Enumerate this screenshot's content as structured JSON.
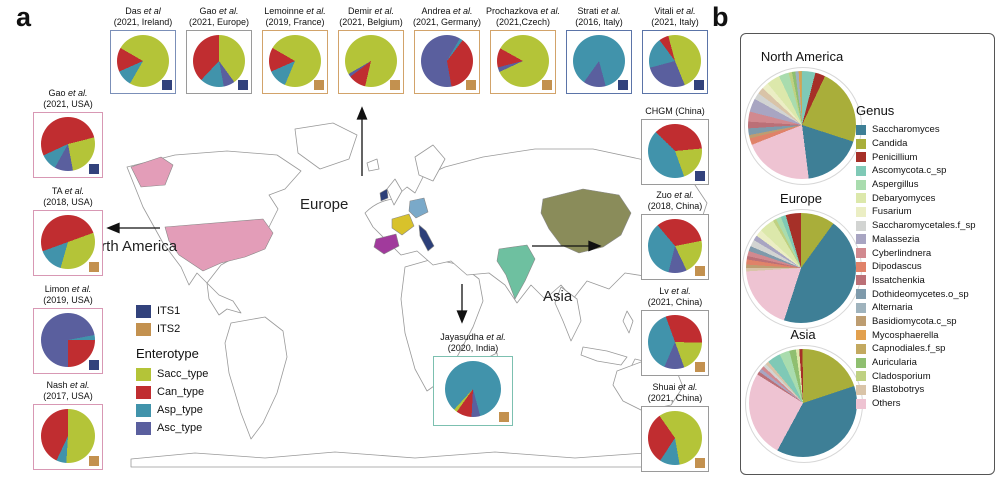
{
  "panel_a": {
    "label": "a",
    "map_labels": {
      "europe": "Europe",
      "north_america": "North America",
      "asia": "Asia"
    },
    "its_legend": [
      {
        "label": "ITS1",
        "color": "#32427c"
      },
      {
        "label": "ITS2",
        "color": "#c3914f"
      }
    ],
    "enterotype_legend": {
      "title": "Enterotype",
      "items": [
        {
          "label": "Sacc_type",
          "color": "#b4c438"
        },
        {
          "label": "Can_type",
          "color": "#c02d30"
        },
        {
          "label": "Asp_type",
          "color": "#4193ab"
        },
        {
          "label": "Asc_type",
          "color": "#5a5f9e"
        }
      ]
    },
    "map_countries": {
      "usa": "#e39db8",
      "alaska": "#e39db8",
      "france": "#d8c22b",
      "germany": "#7aa9c9",
      "spain": "#a13a9c",
      "italy": "#2c3f79",
      "ireland": "#2c3f79",
      "china": "#8a8c5a",
      "india": "#6ec0a0"
    }
  },
  "panel_b": {
    "label": "b",
    "genus_legend": {
      "title": "Genus",
      "items": [
        {
          "label": "Saccharomyces",
          "color": "#3e7f96"
        },
        {
          "label": "Candida",
          "color": "#a9ae3a"
        },
        {
          "label": "Penicillium",
          "color": "#a63028"
        },
        {
          "label": "Ascomycota.c_sp",
          "color": "#7fc9b6"
        },
        {
          "label": "Aspergillus",
          "color": "#a9dcae"
        },
        {
          "label": "Debaryomyces",
          "color": "#dce8ab"
        },
        {
          "label": "Fusarium",
          "color": "#ebeec4"
        },
        {
          "label": "Saccharomycetales.f_sp",
          "color": "#d2d4d2"
        },
        {
          "label": "Malassezia",
          "color": "#a8a5c2"
        },
        {
          "label": "Cyberlindnera",
          "color": "#d1898f"
        },
        {
          "label": "Dipodascus",
          "color": "#e08269"
        },
        {
          "label": "Issatchenkia",
          "color": "#bb7077"
        },
        {
          "label": "Dothideomycetes.o_sp",
          "color": "#7e9aab"
        },
        {
          "label": "Alternaria",
          "color": "#9fb3bd"
        },
        {
          "label": "Basidiomycota.c_sp",
          "color": "#bd9d71"
        },
        {
          "label": "Mycosphaerella",
          "color": "#e2a04e"
        },
        {
          "label": "Capnodiales.f_sp",
          "color": "#c3a960"
        },
        {
          "label": "Auricularia",
          "color": "#8fbf70"
        },
        {
          "label": "Cladosporium",
          "color": "#bfd182"
        },
        {
          "label": "Blastobotrys",
          "color": "#d9c4a8"
        },
        {
          "label": "Others",
          "color": "#eec3d2"
        }
      ]
    }
  },
  "chart_data": [
    {
      "id": "das",
      "type": "pie",
      "title": [
        "Das et al",
        "(2021, Ireland)"
      ],
      "marker": "ITS1",
      "box_color": "#7b8fb8",
      "rotation": 300,
      "slices": [
        {
          "label": "Sacc_type",
          "value": 75
        },
        {
          "label": "Asp_type",
          "value": 10
        },
        {
          "label": "Can_type",
          "value": 15
        }
      ]
    },
    {
      "id": "gao_eu",
      "type": "pie",
      "title": [
        "Gao et al.",
        "(2021, Europe)"
      ],
      "marker": "ITS1",
      "box_color": "#9a9a9a",
      "rotation": 0,
      "slices": [
        {
          "label": "Sacc_type",
          "value": 40
        },
        {
          "label": "Asc_type",
          "value": 7
        },
        {
          "label": "Asp_type",
          "value": 15
        },
        {
          "label": "Can_type",
          "value": 38
        }
      ]
    },
    {
      "id": "lemoinne",
      "type": "pie",
      "title": [
        "Lemoinne et al.",
        "(2019, France)"
      ],
      "marker": "ITS2",
      "box_color": "#d2a36a",
      "rotation": 300,
      "slices": [
        {
          "label": "Sacc_type",
          "value": 73
        },
        {
          "label": "Asp_type",
          "value": 12
        },
        {
          "label": "Can_type",
          "value": 15
        }
      ]
    },
    {
      "id": "demir",
      "type": "pie",
      "title": [
        "Demir et al.",
        "(2021, Belgium)"
      ],
      "marker": "ITS2",
      "box_color": "#d2a36a",
      "rotation": 240,
      "slices": [
        {
          "label": "Sacc_type",
          "value": 87
        },
        {
          "label": "Can_type",
          "value": 11
        },
        {
          "label": "Asc_type",
          "value": 2
        }
      ]
    },
    {
      "id": "andrea",
      "type": "pie",
      "title": [
        "Andrea et al.",
        "(2021, Germany)"
      ],
      "marker": "ITS2",
      "box_color": "#d2a36a",
      "rotation": 170,
      "slices": [
        {
          "label": "Asc_type",
          "value": 61
        },
        {
          "label": "Asp_type",
          "value": 2
        },
        {
          "label": "Can_type",
          "value": 37
        }
      ]
    },
    {
      "id": "prochazkova",
      "type": "pie",
      "title": [
        "Prochazkova et al.",
        "(2021,Czech)"
      ],
      "marker": "ITS2",
      "box_color": "#d2a36a",
      "rotation": 245,
      "slices": [
        {
          "label": "Asc_type",
          "value": 3
        },
        {
          "label": "Can_type",
          "value": 12
        },
        {
          "label": "Sacc_type",
          "value": 85
        }
      ]
    },
    {
      "id": "strati",
      "type": "pie",
      "title": [
        "Strati et al.",
        "(2016, Italy)"
      ],
      "marker": "ITS1",
      "box_color": "#5b74a8",
      "rotation": 165,
      "slices": [
        {
          "label": "Asc_type",
          "value": 14
        },
        {
          "label": "Asp_type",
          "value": 86
        }
      ]
    },
    {
      "id": "vitali",
      "type": "pie",
      "title": [
        "Vitali et al.",
        "(2021, Italy)"
      ],
      "marker": "ITS1",
      "box_color": "#5b74a8",
      "rotation": 345,
      "slices": [
        {
          "label": "Sacc_type",
          "value": 48
        },
        {
          "label": "Asc_type",
          "value": 27
        },
        {
          "label": "Asp_type",
          "value": 19
        },
        {
          "label": "Can_type",
          "value": 6
        }
      ]
    },
    {
      "id": "gao_usa",
      "type": "pie",
      "title": [
        "Gao et al.",
        "(2021, USA)"
      ],
      "marker": "ITS1",
      "box_color": "#d898b4",
      "rotation": 245,
      "slices": [
        {
          "label": "Can_type",
          "value": 53
        },
        {
          "label": "Sacc_type",
          "value": 26
        },
        {
          "label": "Asc_type",
          "value": 11
        },
        {
          "label": "Asp_type",
          "value": 10
        }
      ]
    },
    {
      "id": "ta",
      "type": "pie",
      "title": [
        "TA et al.",
        "(2018, USA)"
      ],
      "marker": "ITS2",
      "box_color": "#d898b4",
      "rotation": 250,
      "slices": [
        {
          "label": "Can_type",
          "value": 50
        },
        {
          "label": "Sacc_type",
          "value": 35
        },
        {
          "label": "Asp_type",
          "value": 15
        }
      ]
    },
    {
      "id": "limon",
      "type": "pie",
      "title": [
        "Limon et al.",
        "(2019, USA)"
      ],
      "marker": "ITS1",
      "box_color": "#d898b4",
      "rotation": 180,
      "slices": [
        {
          "label": "Asc_type",
          "value": 72
        },
        {
          "label": "Asp_type",
          "value": 3
        },
        {
          "label": "Can_type",
          "value": 25
        }
      ]
    },
    {
      "id": "nash",
      "type": "pie",
      "title": [
        "Nash et al.",
        "(2017, USA)"
      ],
      "marker": "ITS2",
      "box_color": "#d898b4",
      "rotation": 0,
      "slices": [
        {
          "label": "Sacc_type",
          "value": 51
        },
        {
          "label": "Asp_type",
          "value": 6
        },
        {
          "label": "Can_type",
          "value": 43
        }
      ]
    },
    {
      "id": "chgm",
      "type": "pie",
      "title": [
        "CHGM (China)"
      ],
      "marker": "ITS1",
      "box_color": "#9a9a9a",
      "rotation": 315,
      "slices": [
        {
          "label": "Can_type",
          "value": 36
        },
        {
          "label": "Sacc_type",
          "value": 21
        },
        {
          "label": "Asp_type",
          "value": 43
        }
      ]
    },
    {
      "id": "zuo",
      "type": "pie",
      "title": [
        "Zuo et al.",
        "(2018, China)"
      ],
      "marker": "ITS2",
      "box_color": "#9a9a9a",
      "rotation": 320,
      "slices": [
        {
          "label": "Can_type",
          "value": 33
        },
        {
          "label": "Sacc_type",
          "value": 21
        },
        {
          "label": "Asc_type",
          "value": 11
        },
        {
          "label": "Asp_type",
          "value": 35
        }
      ]
    },
    {
      "id": "lv",
      "type": "pie",
      "title": [
        "Lv et al.",
        "(2021, China)"
      ],
      "marker": "ITS2",
      "box_color": "#9a9a9a",
      "rotation": 340,
      "slices": [
        {
          "label": "Can_type",
          "value": 31
        },
        {
          "label": "Sacc_type",
          "value": 19
        },
        {
          "label": "Asc_type",
          "value": 12
        },
        {
          "label": "Asp_type",
          "value": 38
        }
      ]
    },
    {
      "id": "shuai",
      "type": "pie",
      "title": [
        "Shuai et al.",
        "(2021, China)"
      ],
      "marker": "ITS2",
      "box_color": "#9a9a9a",
      "rotation": 325,
      "slices": [
        {
          "label": "Sacc_type",
          "value": 57
        },
        {
          "label": "Asp_type",
          "value": 12
        },
        {
          "label": "Can_type",
          "value": 31
        }
      ]
    },
    {
      "id": "jayasudha",
      "type": "pie",
      "title": [
        "Jayasudha et al.",
        "(2020, India)"
      ],
      "marker": "ITS2",
      "box_color": "#7cc0b0",
      "rotation": 165,
      "slices": [
        {
          "label": "Asc_type",
          "value": 5
        },
        {
          "label": "Can_type",
          "value": 9
        },
        {
          "label": "Sacc_type",
          "value": 2
        },
        {
          "label": "Asp_type",
          "value": 84
        }
      ]
    },
    {
      "id": "na_genus",
      "type": "pie",
      "title": "North America",
      "rotation": 0,
      "slices": [
        {
          "label": "Ascomycota.c_sp",
          "value": 4
        },
        {
          "label": "Penicillium",
          "value": 3
        },
        {
          "label": "Candida",
          "value": 23
        },
        {
          "label": "Saccharomyces",
          "value": 18
        },
        {
          "label": "Others",
          "value": 21
        },
        {
          "label": "Dipodascus",
          "value": 2
        },
        {
          "label": "Basidiomycota.c_sp",
          "value": 1
        },
        {
          "label": "Dothideomycetes.o_sp",
          "value": 2
        },
        {
          "label": "Issatchenkia",
          "value": 2
        },
        {
          "label": "Cyberlindnera",
          "value": 3
        },
        {
          "label": "Malassezia",
          "value": 4
        },
        {
          "label": "Saccharomycetales.f_sp",
          "value": 2
        },
        {
          "label": "Blastobotrys",
          "value": 2
        },
        {
          "label": "Fusarium",
          "value": 2
        },
        {
          "label": "Debaryomyces",
          "value": 4
        },
        {
          "label": "Aspergillus",
          "value": 3
        },
        {
          "label": "Cladosporium",
          "value": 1
        },
        {
          "label": "Auricularia",
          "value": 1
        },
        {
          "label": "Alternaria",
          "value": 1
        },
        {
          "label": "Mycosphaerella",
          "value": 0.5
        },
        {
          "label": "Capnodiales.f_sp",
          "value": 0.5
        }
      ]
    },
    {
      "id": "eu_genus",
      "type": "pie",
      "title": "Europe",
      "rotation": 0,
      "slices": [
        {
          "label": "Candida",
          "value": 10
        },
        {
          "label": "Saccharomyces",
          "value": 45
        },
        {
          "label": "Others",
          "value": 19
        },
        {
          "label": "Blastobotrys",
          "value": 1
        },
        {
          "label": "Basidiomycota.c_sp",
          "value": 1
        },
        {
          "label": "Dipodascus",
          "value": 1.5
        },
        {
          "label": "Issatchenkia",
          "value": 1
        },
        {
          "label": "Cyberlindnera",
          "value": 1.5
        },
        {
          "label": "Dothideomycetes.o_sp",
          "value": 1.5
        },
        {
          "label": "Saccharomycetales.f_sp",
          "value": 2
        },
        {
          "label": "Malassezia",
          "value": 1.5
        },
        {
          "label": "Fusarium",
          "value": 2
        },
        {
          "label": "Debaryomyces",
          "value": 4.5
        },
        {
          "label": "Cladosporium",
          "value": 1
        },
        {
          "label": "Aspergillus",
          "value": 1.5
        },
        {
          "label": "Ascomycota.c_sp",
          "value": 1.5
        },
        {
          "label": "Penicillium",
          "value": 4.5
        }
      ]
    },
    {
      "id": "asia_genus",
      "type": "pie",
      "title": "Asia",
      "rotation": 356,
      "slices": [
        {
          "label": "Penicillium",
          "value": 1
        },
        {
          "label": "Candida",
          "value": 20
        },
        {
          "label": "Saccharomyces",
          "value": 38
        },
        {
          "label": "Others",
          "value": 26
        },
        {
          "label": "Issatchenkia",
          "value": 1
        },
        {
          "label": "Malassezia",
          "value": 1
        },
        {
          "label": "Cyberlindnera",
          "value": 1
        },
        {
          "label": "Saccharomycetales.f_sp",
          "value": 1
        },
        {
          "label": "Blastobotrys",
          "value": 1
        },
        {
          "label": "Ascomycota.c_sp",
          "value": 4
        },
        {
          "label": "Aspergillus",
          "value": 3
        },
        {
          "label": "Auricularia",
          "value": 2
        },
        {
          "label": "Debaryomyces",
          "value": 1
        }
      ]
    }
  ]
}
